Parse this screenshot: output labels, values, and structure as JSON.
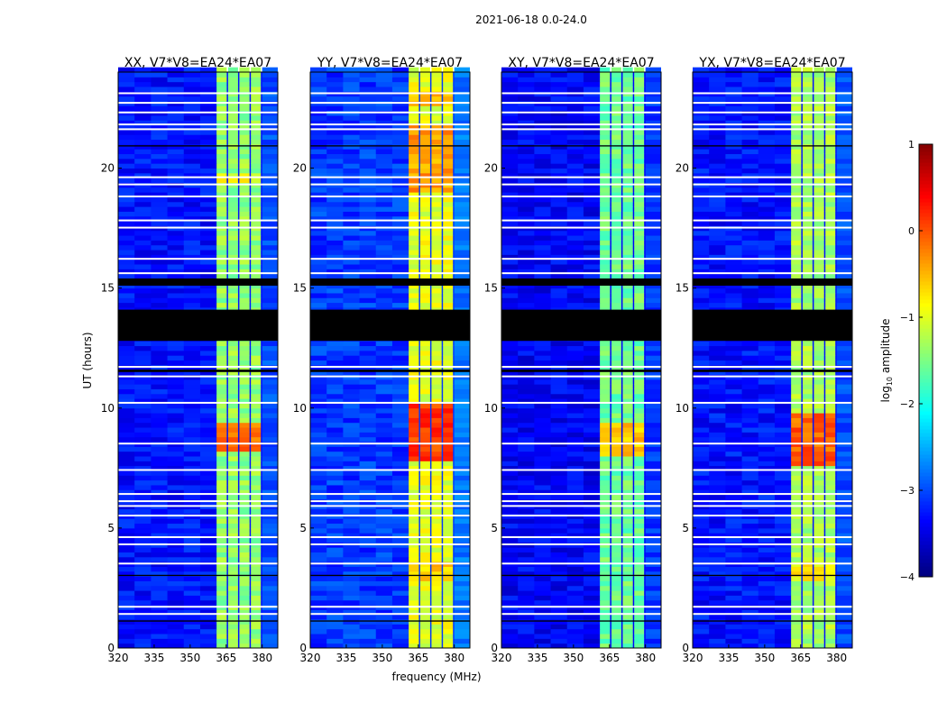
{
  "chart_data": {
    "type": "heatmap",
    "title": "2021-06-18 0.0-24.0",
    "xlabel": "frequency (MHz)",
    "ylabel": "UT (hours)",
    "xlim": [
      320,
      386.5
    ],
    "ylim": [
      0,
      24
    ],
    "xticks": [
      "320",
      "335",
      "350",
      "365",
      "380"
    ],
    "yticks": [
      "0",
      "5",
      "10",
      "15",
      "20"
    ],
    "colorbar": {
      "label_prefix": "log",
      "label_sub": "10",
      "label_suffix": " amplitude",
      "range": [
        -4,
        1
      ],
      "ticks": [
        "−4",
        "−3",
        "−2",
        "−1",
        "0",
        "1"
      ],
      "colormap": "jet"
    },
    "flagged_white_ut": [
      23.1,
      22.7,
      22.3,
      21.8,
      21.6,
      19.6,
      19.3,
      18.8,
      17.8,
      17.5,
      16.2,
      15.6,
      11.7,
      11.3,
      10.2,
      8.5,
      7.4,
      6.4,
      6.1,
      5.9,
      5.5,
      4.6,
      4.3,
      3.5,
      1.7,
      1.4
    ],
    "flagged_black_ut": [
      [
        12.8,
        14.1
      ],
      [
        15.1,
        15.4
      ],
      [
        11.5,
        11.6
      ],
      [
        1.1,
        1.15
      ],
      [
        3.0,
        3.05
      ],
      [
        20.9,
        20.95
      ]
    ],
    "signal_band_mhz": [
      361,
      380
    ],
    "channel_gaps_mhz": [
      365.8,
      370.5,
      375.3
    ],
    "panels": [
      {
        "title": "XX, V7*V8=EA24*EA07",
        "background_level": -3.3,
        "band_level": -1.4,
        "hot": [
          {
            "ut": [
              8.2,
              9.3
            ],
            "level": -0.2
          },
          {
            "ut": [
              19.2,
              19.6
            ],
            "level": -0.9
          }
        ]
      },
      {
        "title": "YY, V7*V8=EA24*EA07",
        "background_level": -3.1,
        "band_level": -1.0,
        "hot": [
          {
            "ut": [
              7.7,
              10.0
            ],
            "level": 0.1
          },
          {
            "ut": [
              18.8,
              21.6
            ],
            "level": -0.4
          },
          {
            "ut": [
              22.4,
              23.0
            ],
            "level": -0.5
          },
          {
            "ut": [
              2.8,
              3.6
            ],
            "level": -0.6
          }
        ]
      },
      {
        "title": "XY, V7*V8=EA24*EA07",
        "background_level": -3.4,
        "band_level": -1.6,
        "hot": [
          {
            "ut": [
              8.0,
              9.3
            ],
            "level": -0.6
          }
        ]
      },
      {
        "title": "YX, V7*V8=EA24*EA07",
        "background_level": -3.3,
        "band_level": -1.3,
        "hot": [
          {
            "ut": [
              7.5,
              9.7
            ],
            "level": -0.1
          },
          {
            "ut": [
              2.8,
              3.6
            ],
            "level": -0.8
          }
        ]
      }
    ]
  }
}
